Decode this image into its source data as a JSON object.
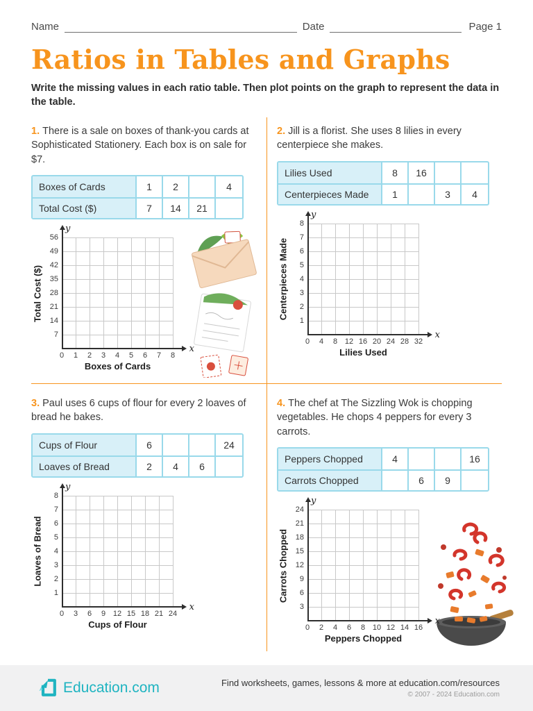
{
  "header": {
    "name_label": "Name",
    "date_label": "Date",
    "page_label": "Page 1"
  },
  "title": "Ratios in Tables and Graphs",
  "instructions": "Write the missing values in each ratio table. Then plot points on the graph to represent the data in the table.",
  "axis_vars": {
    "x": "x",
    "y": "y"
  },
  "problems": [
    {
      "number": "1.",
      "text": "There is a sale on boxes of thank-you cards at Sophisticated Stationery. Each box is on sale for $7.",
      "table": {
        "rows": [
          {
            "label": "Boxes of Cards",
            "cells": [
              "1",
              "2",
              "",
              "4"
            ]
          },
          {
            "label": "Total Cost ($)",
            "cells": [
              "7",
              "14",
              "21",
              ""
            ]
          }
        ]
      },
      "graph": {
        "ylabel": "Total Cost ($)",
        "xlabel": "Boxes of Cards",
        "yticks_top_to_bottom": [
          "56",
          "49",
          "42",
          "35",
          "28",
          "21",
          "14",
          "7"
        ],
        "xticks": [
          "0",
          "1",
          "2",
          "3",
          "4",
          "5",
          "6",
          "7",
          "8"
        ]
      }
    },
    {
      "number": "2.",
      "text": "Jill is a florist. She uses 8 lilies in every centerpiece she makes.",
      "table": {
        "rows": [
          {
            "label": "Lilies Used",
            "cells": [
              "8",
              "16",
              "",
              ""
            ]
          },
          {
            "label": "Centerpieces Made",
            "cells": [
              "1",
              "",
              "3",
              "4"
            ]
          }
        ]
      },
      "graph": {
        "ylabel": "Centerpieces Made",
        "xlabel": "Lilies Used",
        "yticks_top_to_bottom": [
          "8",
          "7",
          "6",
          "5",
          "4",
          "3",
          "2",
          "1"
        ],
        "xticks": [
          "0",
          "4",
          "8",
          "12",
          "16",
          "20",
          "24",
          "28",
          "32"
        ]
      }
    },
    {
      "number": "3.",
      "text": "Paul uses 6 cups of flour for every 2 loaves of bread he bakes.",
      "table": {
        "rows": [
          {
            "label": "Cups of Flour",
            "cells": [
              "6",
              "",
              "",
              "24"
            ]
          },
          {
            "label": "Loaves of Bread",
            "cells": [
              "2",
              "4",
              "6",
              ""
            ]
          }
        ]
      },
      "graph": {
        "ylabel": "Loaves of Bread",
        "xlabel": "Cups of Flour",
        "yticks_top_to_bottom": [
          "8",
          "7",
          "6",
          "5",
          "4",
          "3",
          "2",
          "1"
        ],
        "xticks": [
          "0",
          "3",
          "6",
          "9",
          "12",
          "15",
          "18",
          "21",
          "24"
        ]
      }
    },
    {
      "number": "4.",
      "text": "The chef at The Sizzling Wok is chopping vegetables. He chops 4 peppers for every 3 carrots.",
      "table": {
        "rows": [
          {
            "label": "Peppers Chopped",
            "cells": [
              "4",
              "",
              "",
              "16"
            ]
          },
          {
            "label": "Carrots Chopped",
            "cells": [
              "",
              "6",
              "9",
              ""
            ]
          }
        ]
      },
      "graph": {
        "ylabel": "Carrots Chopped",
        "xlabel": "Peppers Chopped",
        "yticks_top_to_bottom": [
          "24",
          "21",
          "18",
          "15",
          "12",
          "9",
          "6",
          "3"
        ],
        "xticks": [
          "0",
          "2",
          "4",
          "6",
          "8",
          "10",
          "12",
          "14",
          "16"
        ]
      }
    }
  ],
  "footer": {
    "brand": "Education.com",
    "find_text": "Find worksheets, games, lessons & more at education.com/resources",
    "copyright": "© 2007 - 2024 Education.com"
  },
  "colors": {
    "accent_orange": "#F7941D",
    "table_blue_bg": "#D8F0F8",
    "table_border": "#99D9EA",
    "brand_teal": "#1FB4C1",
    "grid_gray": "#C8C8C8"
  }
}
